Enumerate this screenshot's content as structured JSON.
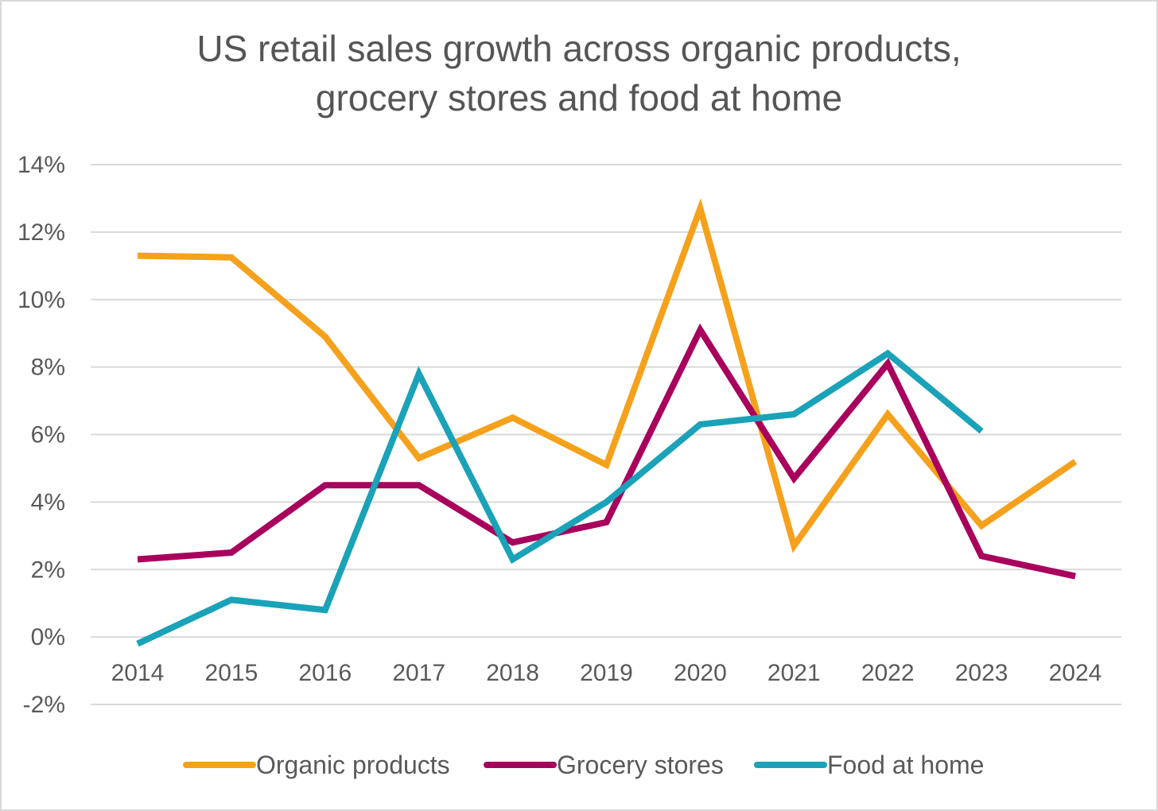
{
  "chart_data": {
    "type": "line",
    "title_line1": "US retail sales growth across organic products,",
    "title_line2": "grocery stores and food at home",
    "xlabel": "",
    "ylabel": "",
    "ylim": [
      -2,
      14
    ],
    "yticks": [
      "-2%",
      "0%",
      "2%",
      "4%",
      "6%",
      "8%",
      "10%",
      "12%",
      "14%"
    ],
    "ytick_values": [
      -2,
      0,
      2,
      4,
      6,
      8,
      10,
      12,
      14
    ],
    "categories": [
      "2014",
      "2015",
      "2016",
      "2017",
      "2018",
      "2019",
      "2020",
      "2021",
      "2022",
      "2023",
      "2024"
    ],
    "grid": true,
    "legend_position": "bottom",
    "series": [
      {
        "name": "Organic products",
        "color": "#f5a11c",
        "values": [
          11.3,
          11.25,
          8.9,
          5.3,
          6.5,
          5.1,
          12.7,
          2.7,
          6.6,
          3.3,
          5.2
        ]
      },
      {
        "name": "Grocery stores",
        "color": "#a8005c",
        "values": [
          2.3,
          2.5,
          4.5,
          4.5,
          2.8,
          3.4,
          9.1,
          4.7,
          8.1,
          2.4,
          1.8
        ]
      },
      {
        "name": "Food at home",
        "color": "#1aa2b8",
        "values": [
          -0.2,
          1.1,
          0.8,
          7.8,
          2.3,
          4.0,
          6.3,
          6.6,
          8.4,
          6.1,
          null
        ]
      }
    ]
  }
}
